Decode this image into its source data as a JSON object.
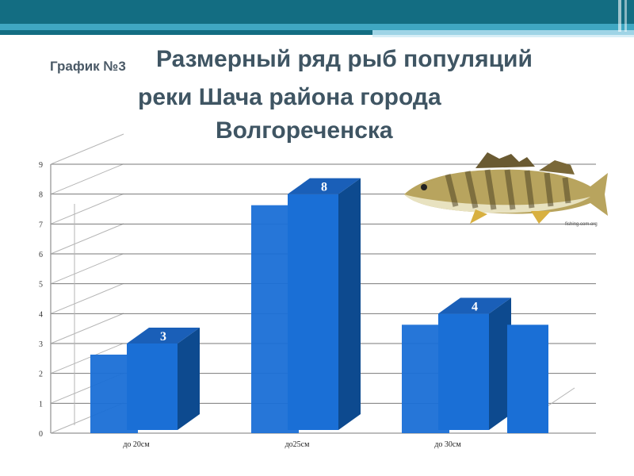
{
  "title": {
    "prefix": "График №3",
    "line1": "Размерный ряд рыб популяций",
    "line2": "реки Шача  района города",
    "line3": "Волгореченска"
  },
  "colors": {
    "bar": "#1a6fd6",
    "bar_top": "#1a5fb8",
    "bar_side": "#0d4a8f",
    "bar_label": "#ffffff",
    "grid": "#7a7a7a",
    "title": "#3f5563",
    "header_teal": "#136d82"
  },
  "fish_picture": {
    "icon": "zander-fish-photo",
    "watermark": "fishing.com.org"
  },
  "chart_data": {
    "type": "bar",
    "categories": [
      "до 20см",
      "до25см",
      "до 30см"
    ],
    "values": [
      3,
      8,
      4
    ],
    "ylim": [
      0,
      9
    ],
    "y_ticks": [
      0,
      1,
      2,
      3,
      4,
      5,
      6,
      7,
      8,
      9
    ],
    "title": "",
    "xlabel": "",
    "ylabel": "",
    "grid": true,
    "three_d": true,
    "legend": "none"
  }
}
